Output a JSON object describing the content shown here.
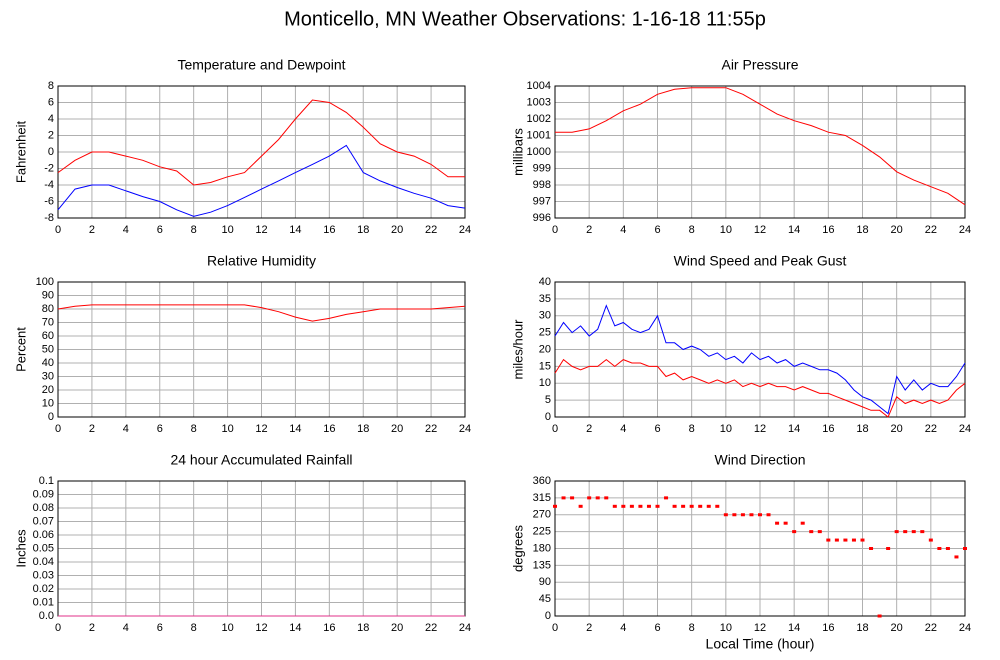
{
  "title": "Monticello, MN Weather Observations: 1-16-18 11:55p",
  "chart_data": [
    {
      "type": "line",
      "title": "Temperature and Dewpoint",
      "ylabel": "Fahrenheit",
      "grid": true,
      "x": [
        0,
        1,
        2,
        3,
        4,
        5,
        6,
        7,
        8,
        9,
        10,
        11,
        12,
        13,
        14,
        15,
        16,
        17,
        18,
        19,
        20,
        21,
        22,
        23,
        24
      ],
      "xlim": [
        0,
        24
      ],
      "xticks": [
        0,
        2,
        4,
        6,
        8,
        10,
        12,
        14,
        16,
        18,
        20,
        22,
        24
      ],
      "ylim": [
        -8,
        8
      ],
      "yticks": [
        -8,
        -6,
        -4,
        -2,
        0,
        2,
        4,
        6,
        8
      ],
      "series": [
        {
          "color": "#ff0000",
          "values": [
            -2.5,
            -1,
            0,
            0,
            -0.5,
            -1,
            -1.8,
            -2.3,
            -4,
            -3.7,
            -3,
            -2.5,
            -0.5,
            1.5,
            4,
            6.3,
            6,
            4.8,
            3,
            1,
            0,
            -0.5,
            -1.5,
            -3,
            -3
          ]
        },
        {
          "color": "#0000ff",
          "values": [
            -7,
            -4.5,
            -4,
            -4,
            -4.7,
            -5.4,
            -6,
            -7,
            -7.8,
            -7.3,
            -6.5,
            -5.5,
            -4.5,
            -3.5,
            -2.5,
            -1.5,
            -0.5,
            0.8,
            -2.5,
            -3.5,
            -4.3,
            -5,
            -5.6,
            -6.5,
            -6.8
          ]
        }
      ]
    },
    {
      "type": "line",
      "title": "Air Pressure",
      "ylabel": "millibars",
      "grid": true,
      "x": [
        0,
        1,
        2,
        3,
        4,
        5,
        6,
        7,
        8,
        9,
        10,
        11,
        12,
        13,
        14,
        15,
        16,
        17,
        18,
        19,
        20,
        21,
        22,
        23,
        24
      ],
      "xlim": [
        0,
        24
      ],
      "xticks": [
        0,
        2,
        4,
        6,
        8,
        10,
        12,
        14,
        16,
        18,
        20,
        22,
        24
      ],
      "ylim": [
        996,
        1004
      ],
      "yticks": [
        996,
        997,
        998,
        999,
        1000,
        1001,
        1002,
        1003,
        1004
      ],
      "series": [
        {
          "color": "#ff0000",
          "values": [
            1001.2,
            1001.2,
            1001.4,
            1001.9,
            1002.5,
            1002.9,
            1003.5,
            1003.8,
            1003.9,
            1003.9,
            1003.9,
            1003.5,
            1002.9,
            1002.3,
            1001.9,
            1001.6,
            1001.2,
            1001,
            1000.4,
            999.7,
            998.8,
            998.3,
            997.9,
            997.5,
            996.8
          ]
        }
      ]
    },
    {
      "type": "line",
      "title": "Relative Humidity",
      "ylabel": "Percent",
      "grid": true,
      "x": [
        0,
        1,
        2,
        3,
        4,
        5,
        6,
        7,
        8,
        9,
        10,
        11,
        12,
        13,
        14,
        15,
        16,
        17,
        18,
        19,
        20,
        21,
        22,
        23,
        24
      ],
      "xlim": [
        0,
        24
      ],
      "xticks": [
        0,
        2,
        4,
        6,
        8,
        10,
        12,
        14,
        16,
        18,
        20,
        22,
        24
      ],
      "ylim": [
        0,
        100
      ],
      "yticks": [
        0,
        10,
        20,
        30,
        40,
        50,
        60,
        70,
        80,
        90,
        100
      ],
      "series": [
        {
          "color": "#ff0000",
          "values": [
            80,
            82,
            83,
            83,
            83,
            83,
            83,
            83,
            83,
            83,
            83,
            83,
            81,
            78,
            74,
            71,
            73,
            76,
            78,
            80,
            80,
            80,
            80,
            81,
            82
          ]
        }
      ]
    },
    {
      "type": "line",
      "title": "Wind Speed and Peak Gust",
      "ylabel": "miles/hour",
      "grid": true,
      "x": [
        0,
        0.5,
        1,
        1.5,
        2,
        2.5,
        3,
        3.5,
        4,
        4.5,
        5,
        5.5,
        6,
        6.5,
        7,
        7.5,
        8,
        8.5,
        9,
        9.5,
        10,
        10.5,
        11,
        11.5,
        12,
        12.5,
        13,
        13.5,
        14,
        14.5,
        15,
        15.5,
        16,
        16.5,
        17,
        17.5,
        18,
        18.5,
        19,
        19.5,
        20,
        20.5,
        21,
        21.5,
        22,
        22.5,
        23,
        23.5,
        24
      ],
      "xlim": [
        0,
        24
      ],
      "xticks": [
        0,
        2,
        4,
        6,
        8,
        10,
        12,
        14,
        16,
        18,
        20,
        22,
        24
      ],
      "ylim": [
        0,
        40
      ],
      "yticks": [
        0,
        5,
        10,
        15,
        20,
        25,
        30,
        35,
        40
      ],
      "series": [
        {
          "color": "#0000ff",
          "values": [
            24,
            28,
            25,
            27,
            24,
            26,
            33,
            27,
            28,
            26,
            25,
            26,
            30,
            22,
            22,
            20,
            21,
            20,
            18,
            19,
            17,
            18,
            16,
            19,
            17,
            18,
            16,
            17,
            15,
            16,
            15,
            14,
            14,
            13,
            11,
            8,
            6,
            5,
            3,
            1,
            12,
            8,
            11,
            8,
            10,
            9,
            9,
            12,
            16
          ]
        },
        {
          "color": "#ff0000",
          "values": [
            13,
            17,
            15,
            14,
            15,
            15,
            17,
            15,
            17,
            16,
            16,
            15,
            15,
            12,
            13,
            11,
            12,
            11,
            10,
            11,
            10,
            11,
            9,
            10,
            9,
            10,
            9,
            9,
            8,
            9,
            8,
            7,
            7,
            6,
            5,
            4,
            3,
            2,
            2,
            0,
            6,
            4,
            5,
            4,
            5,
            4,
            5,
            8,
            10
          ]
        }
      ]
    },
    {
      "type": "line",
      "title": "24 hour Accumulated Rainfall",
      "ylabel": "Inches",
      "grid": true,
      "x": [
        0,
        1,
        2,
        3,
        4,
        5,
        6,
        7,
        8,
        9,
        10,
        11,
        12,
        13,
        14,
        15,
        16,
        17,
        18,
        19,
        20,
        21,
        22,
        23,
        24
      ],
      "xlim": [
        0,
        24
      ],
      "xticks": [
        0,
        2,
        4,
        6,
        8,
        10,
        12,
        14,
        16,
        18,
        20,
        22,
        24
      ],
      "ylim": [
        0,
        0.1
      ],
      "yticks": [
        {
          "value": 0,
          "label": "0.0"
        },
        0.01,
        0.02,
        0.03,
        0.04,
        0.05,
        0.06,
        0.07,
        0.08,
        0.09,
        0.1
      ],
      "series": [
        {
          "color": "#e0308a",
          "values": [
            0,
            0,
            0,
            0,
            0,
            0,
            0,
            0,
            0,
            0,
            0,
            0,
            0,
            0,
            0,
            0,
            0,
            0,
            0,
            0,
            0,
            0,
            0,
            0,
            0
          ]
        }
      ]
    },
    {
      "type": "scatter",
      "title": "Wind Direction",
      "ylabel": "degrees",
      "xlabel": "Local Time (hour)",
      "grid": true,
      "x": [
        0,
        0.5,
        1,
        1.5,
        2,
        2.5,
        3,
        3.5,
        4,
        4.5,
        5,
        5.5,
        6,
        6.5,
        7,
        7.5,
        8,
        8.5,
        9,
        9.5,
        10,
        10.5,
        11,
        11.5,
        12,
        12.5,
        13,
        13.5,
        14,
        14.5,
        15,
        15.5,
        16,
        16.5,
        17,
        17.5,
        18,
        18.5,
        19,
        19.5,
        20,
        20.5,
        21,
        21.5,
        22,
        22.5,
        23,
        23.5,
        24
      ],
      "xlim": [
        0,
        24
      ],
      "xticks": [
        0,
        2,
        4,
        6,
        8,
        10,
        12,
        14,
        16,
        18,
        20,
        22,
        24
      ],
      "ylim": [
        0,
        360
      ],
      "yticks": [
        0,
        45,
        90,
        135,
        180,
        225,
        270,
        315,
        360
      ],
      "series": [
        {
          "color": "#ff0000",
          "values": [
            292.5,
            315,
            315,
            292.5,
            315,
            315,
            315,
            292.5,
            292.5,
            292.5,
            292.5,
            292.5,
            292.5,
            315,
            292.5,
            292.5,
            292.5,
            292.5,
            292.5,
            292.5,
            270,
            270,
            270,
            270,
            270,
            270,
            247.5,
            247.5,
            225,
            247.5,
            225,
            225,
            202.5,
            202.5,
            202.5,
            202.5,
            202.5,
            180,
            0,
            180,
            225,
            225,
            225,
            225,
            202.5,
            180,
            180,
            157.5,
            180
          ]
        }
      ]
    }
  ]
}
